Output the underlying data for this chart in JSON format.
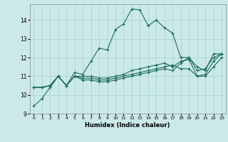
{
  "xlabel": "Humidex (Indice chaleur)",
  "background_color": "#cce9e9",
  "grid_color": "#aad4d4",
  "line_color": "#1a6b5a",
  "xlim": [
    -0.5,
    23.5
  ],
  "ylim": [
    9.0,
    14.85
  ],
  "yticks": [
    9,
    10,
    11,
    12,
    13,
    14
  ],
  "xticks": [
    0,
    1,
    2,
    3,
    4,
    5,
    6,
    7,
    8,
    9,
    10,
    11,
    12,
    13,
    14,
    15,
    16,
    17,
    18,
    19,
    20,
    21,
    22,
    23
  ],
  "series": [
    [
      9.4,
      9.8,
      10.4,
      11.0,
      10.5,
      11.2,
      11.1,
      11.8,
      12.5,
      12.4,
      13.5,
      13.8,
      14.6,
      14.55,
      13.7,
      14.0,
      13.6,
      13.3,
      12.0,
      12.0,
      11.5,
      11.3,
      12.2,
      12.2
    ],
    [
      10.4,
      10.4,
      10.5,
      11.0,
      10.5,
      11.0,
      11.0,
      11.0,
      10.9,
      10.9,
      11.0,
      11.1,
      11.3,
      11.4,
      11.5,
      11.6,
      11.7,
      11.5,
      11.8,
      11.9,
      11.0,
      11.1,
      11.8,
      12.2
    ],
    [
      10.4,
      10.4,
      10.5,
      11.0,
      10.5,
      11.0,
      10.9,
      10.9,
      10.8,
      10.8,
      10.9,
      11.0,
      11.1,
      11.2,
      11.3,
      11.4,
      11.5,
      11.6,
      11.4,
      11.4,
      11.0,
      11.0,
      11.5,
      12.0
    ],
    [
      10.4,
      10.4,
      10.5,
      11.0,
      10.5,
      11.0,
      10.8,
      10.8,
      10.7,
      10.7,
      10.8,
      10.9,
      11.0,
      11.1,
      11.2,
      11.3,
      11.4,
      11.3,
      11.7,
      12.0,
      11.3,
      11.4,
      12.0,
      12.2
    ]
  ],
  "marker_style": "+"
}
